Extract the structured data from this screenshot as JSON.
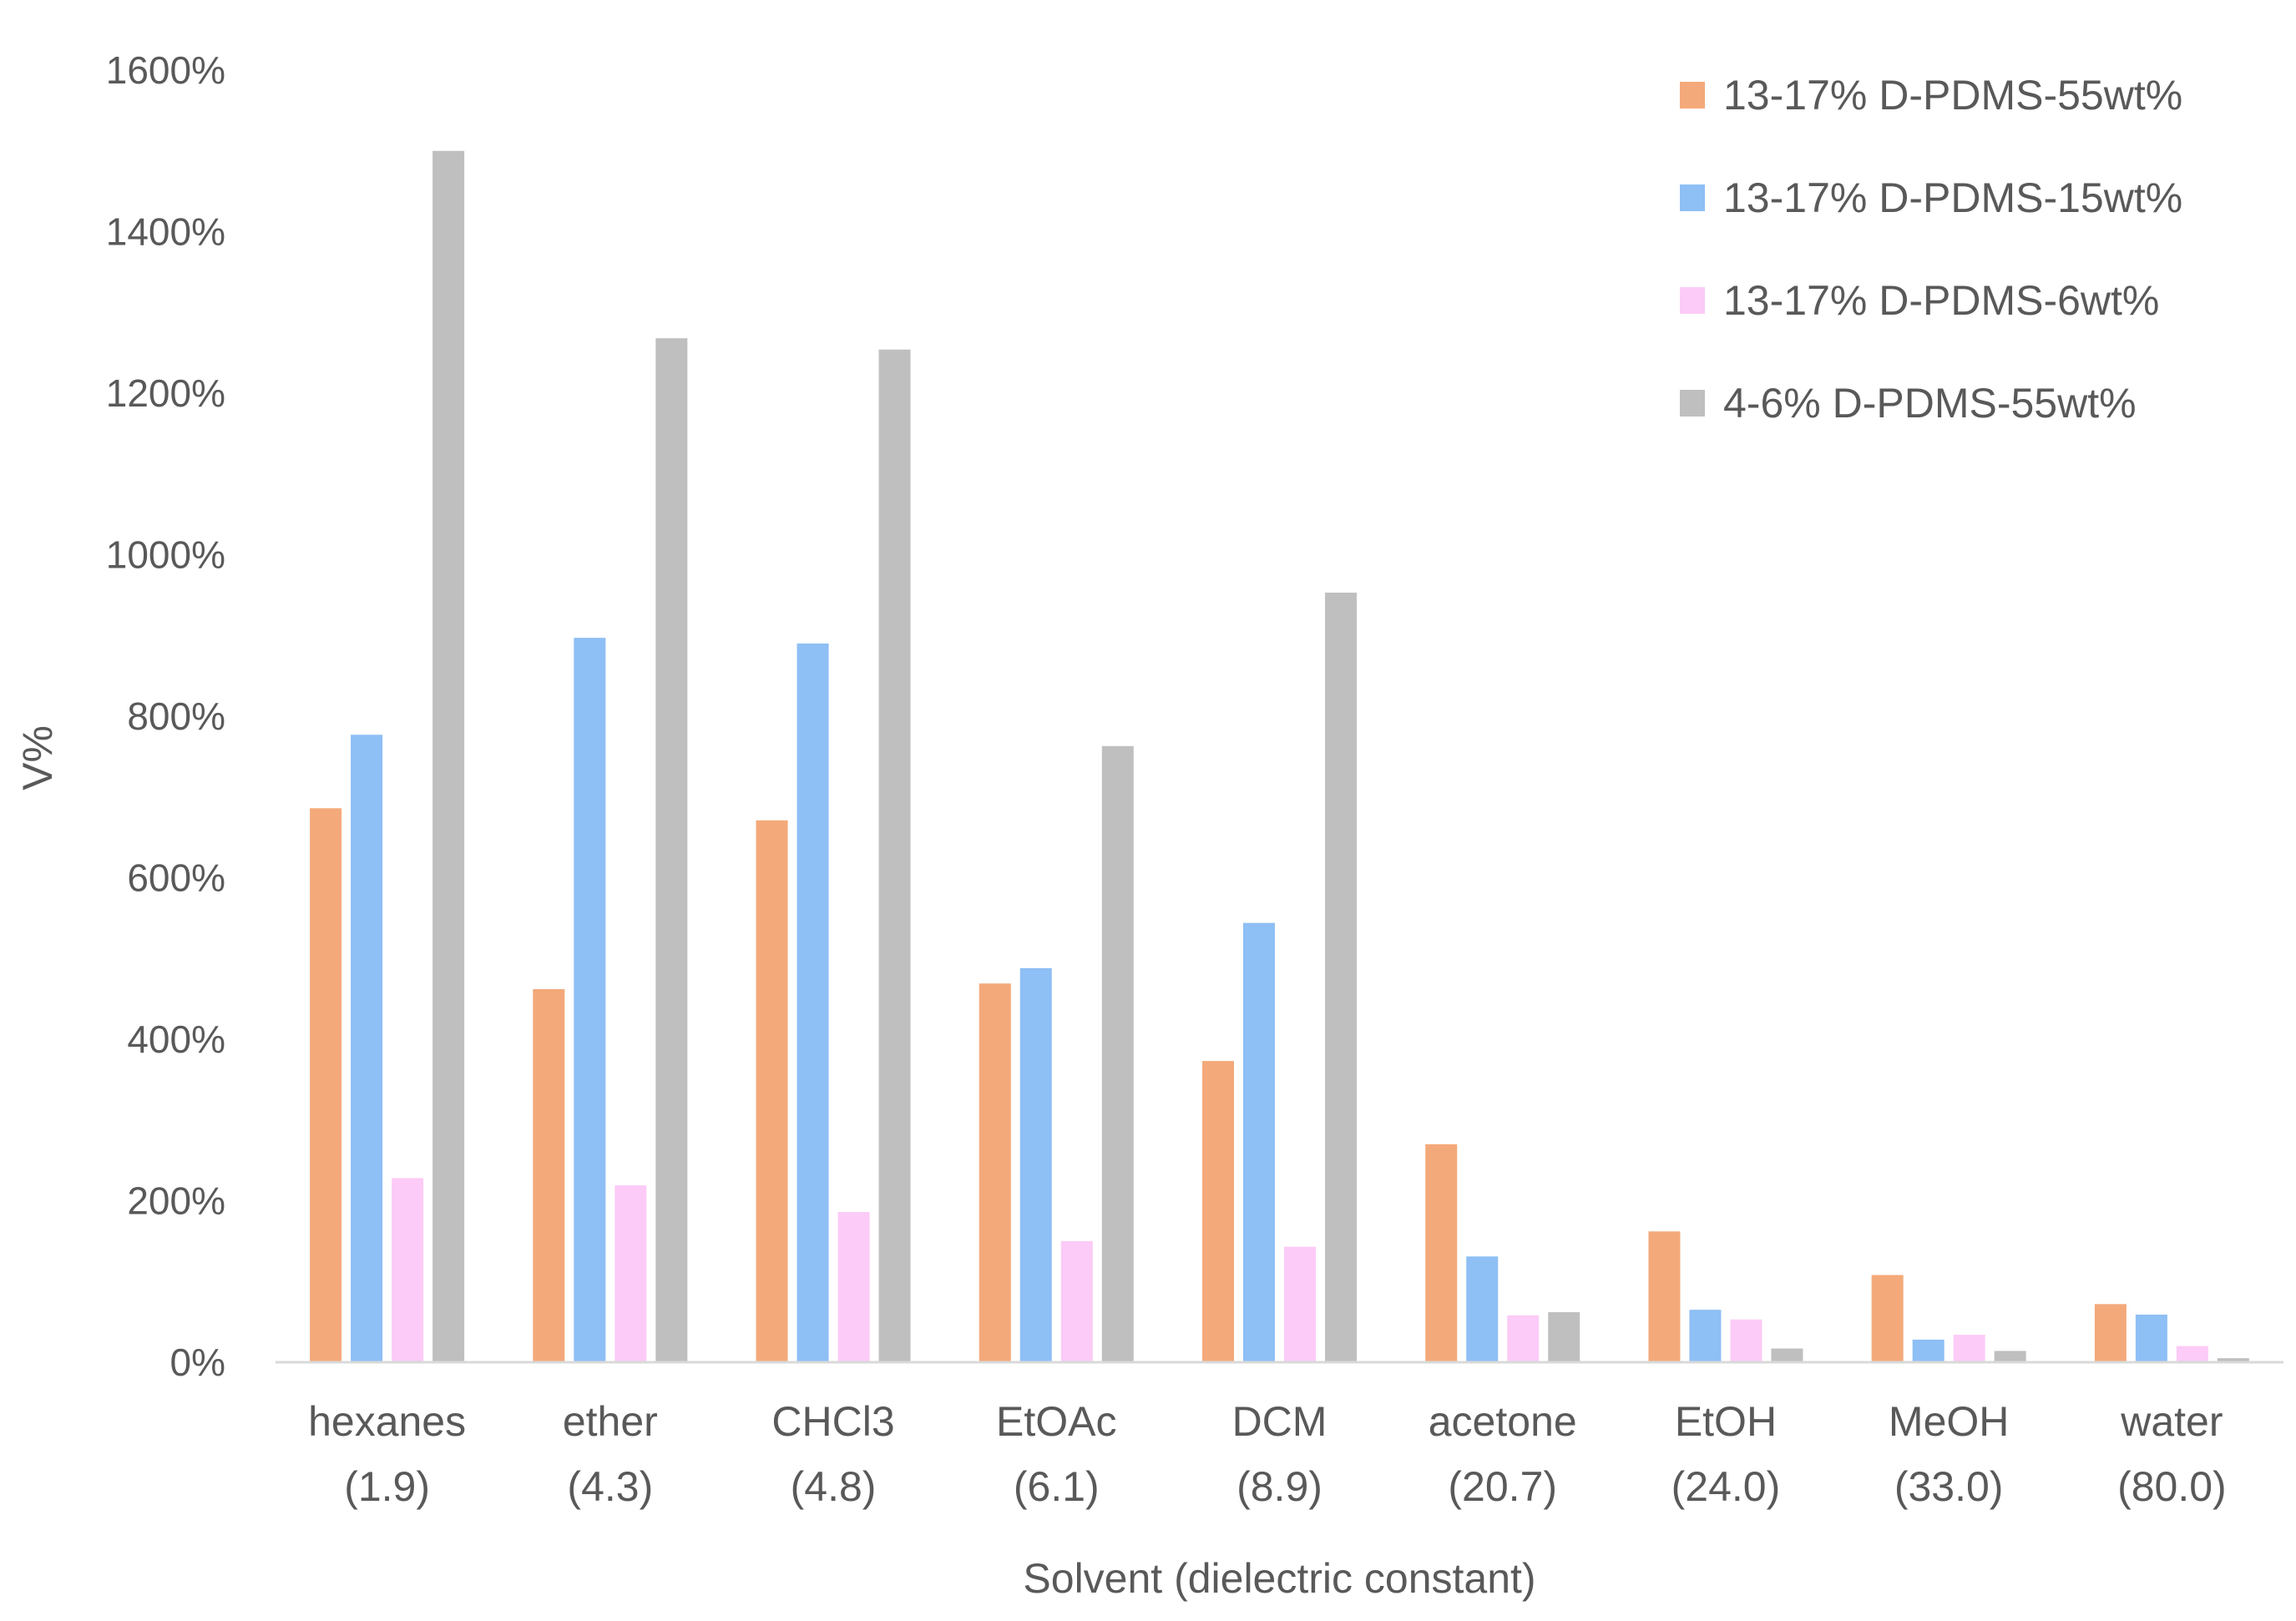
{
  "chart_data": {
    "type": "bar",
    "title": "",
    "xlabel": "Solvent (dielectric constant)",
    "ylabel": "V%",
    "ylim": [
      0,
      1600
    ],
    "y_tick_step": 200,
    "y_tick_format": "percent",
    "grid": false,
    "legend_position": "top-right",
    "categories": [
      {
        "name": "hexanes",
        "sub": "(1.9)"
      },
      {
        "name": "ether",
        "sub": "(4.3)"
      },
      {
        "name": "CHCl3",
        "sub": "(4.8)"
      },
      {
        "name": "EtOAc",
        "sub": "(6.1)"
      },
      {
        "name": "DCM",
        "sub": "(8.9)"
      },
      {
        "name": "acetone",
        "sub": "(20.7)"
      },
      {
        "name": "EtOH",
        "sub": "(24.0)"
      },
      {
        "name": "MeOH",
        "sub": "(33.0)"
      },
      {
        "name": "water",
        "sub": "(80.0)"
      }
    ],
    "series": [
      {
        "name": "13-17% D-PDMS-55wt%",
        "color": "#F4A97A",
        "values": [
          686,
          462,
          671,
          469,
          373,
          270,
          162,
          108,
          72
        ]
      },
      {
        "name": "13-17% D-PDMS-15wt%",
        "color": "#8EBFF5",
        "values": [
          777,
          897,
          890,
          488,
          544,
          131,
          65,
          28,
          59
        ]
      },
      {
        "name": "13-17% D-PDMS-6wt%",
        "color": "#FCCBF7",
        "values": [
          228,
          219,
          186,
          150,
          143,
          58,
          53,
          34,
          20
        ]
      },
      {
        "name": "4-6% D-PDMS-55wt%",
        "color": "#BFBFBF",
        "values": [
          1500,
          1268,
          1254,
          763,
          953,
          62,
          17,
          14,
          5
        ]
      }
    ]
  }
}
